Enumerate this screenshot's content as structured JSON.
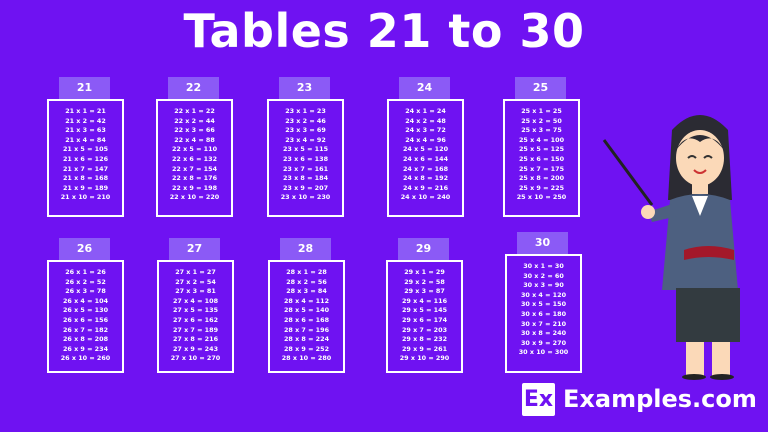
{
  "title": "Tables 21 to 30",
  "tables": [
    {
      "n": "21",
      "lines": [
        "21 x 1 = 21",
        "21 x 2 = 42",
        "21 x 3 = 63",
        "21 x 4 = 84",
        "21 x 5 = 105",
        "21 x 6 = 126",
        "21 x 7 = 147",
        "21 x 8 = 168",
        "21 x 9 = 189",
        "21 x 10 = 210"
      ]
    },
    {
      "n": "22",
      "lines": [
        "22 x 1 = 22",
        "22 x 2 = 44",
        "22 x 3 = 66",
        "22 x 4 = 88",
        "22 x 5 = 110",
        "22 x 6 = 132",
        "22 x 7 = 154",
        "22 x 8 = 176",
        "22 x 9 = 198",
        "22 x 10 = 220"
      ]
    },
    {
      "n": "23",
      "lines": [
        "23 x 1 = 23",
        "23 x 2 = 46",
        "23 x 3 = 69",
        "23 x 4 = 92",
        "23 x 5 = 115",
        "23 x 6 = 138",
        "23 x 7 = 161",
        "23 x 8 = 184",
        "23 x 9 = 207",
        "23 x 10 = 230"
      ]
    },
    {
      "n": "24",
      "lines": [
        "24 x 1 = 24",
        "24 x 2 = 48",
        "24 x 3 = 72",
        "24 x 4 = 96",
        "24 x 5 = 120",
        "24 x 6 = 144",
        "24 x 7 = 168",
        "24 x 8 = 192",
        "24 x 9 = 216",
        "24 x 10 = 240"
      ]
    },
    {
      "n": "25",
      "lines": [
        "25 x 1 = 25",
        "25 x 2 = 50",
        "25 x 3 = 75",
        "25 x 4 = 100",
        "25 x 5 = 125",
        "25 x 6 = 150",
        "25 x 7 = 175",
        "25 x 8 = 200",
        "25 x 9 = 225",
        "25 x 10 = 250"
      ]
    },
    {
      "n": "26",
      "lines": [
        "26 x 1 = 26",
        "26 x 2 = 52",
        "26 x 3 = 78",
        "26 x 4 = 104",
        "26 x 5 = 130",
        "26 x 6 = 156",
        "26 x 7 = 182",
        "26 x 8 = 208",
        "26 x 9 = 234",
        "26 x 10 = 260"
      ]
    },
    {
      "n": "27",
      "lines": [
        "27 x 1 = 27",
        "27 x 2 = 54",
        "27 x 3 = 81",
        "27 x 4 = 108",
        "27 x 5 = 135",
        "27 x 6 = 162",
        "27 x 7 = 189",
        "27 x 8 = 216",
        "27 x 9 = 243",
        "27 x 10 = 270"
      ]
    },
    {
      "n": "28",
      "lines": [
        "28 x 1 = 28",
        "28 x 2 = 56",
        "28 x 3 = 84",
        "28 x 4 = 112",
        "28 x 5 = 140",
        "28 x 6 = 168",
        "28 x 7 = 196",
        "28 x 8 = 224",
        "28 x 9 = 252",
        "28 x 10 = 280"
      ]
    },
    {
      "n": "29",
      "lines": [
        "29 x 1 = 29",
        "29 x 2 = 58",
        "29 x 3 = 87",
        "29 x 4 = 116",
        "29 x 5 = 145",
        "29 x 6 = 174",
        "29 x 7 = 203",
        "29 x 8 = 232",
        "29 x 9 = 261",
        "29 x 10 = 290"
      ]
    },
    {
      "n": "30",
      "lines": [
        "30 x 1 = 30",
        "30 x 2 = 60",
        "30 x 3 = 90",
        "30 x 4 = 120",
        "30 x 5 = 150",
        "30 x 6 = 180",
        "30 x 7 = 210",
        "30 x 8 = 240",
        "30 x 9 = 270",
        "30 x 10 = 300"
      ]
    }
  ],
  "logo": {
    "mark": "Ex",
    "text": "Examples.com"
  },
  "colors": {
    "background": "#6f12f2",
    "tab": "#8b5af6",
    "text": "#ffffff"
  }
}
